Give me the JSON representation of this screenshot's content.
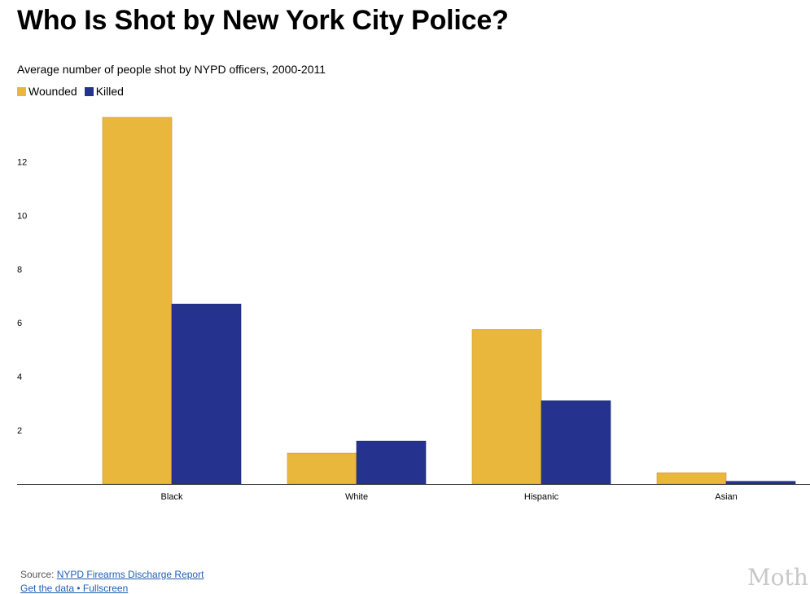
{
  "chart_data": {
    "type": "bar",
    "title": "Who Is Shot by New York City Police?",
    "subtitle": "Average number of people shot by NYPD officers, 2000-2011",
    "categories": [
      "Black",
      "White",
      "Hispanic",
      "Asian"
    ],
    "series": [
      {
        "name": "Wounded",
        "color": "#e8b73c",
        "values": [
          13.65,
          1.15,
          5.75,
          0.42
        ]
      },
      {
        "name": "Killed",
        "color": "#25338f",
        "values": [
          6.7,
          1.6,
          3.1,
          0.1
        ]
      }
    ],
    "yticks": [
      2,
      4,
      6,
      8,
      10,
      12
    ],
    "ylim": [
      0,
      13.65
    ],
    "xlabel": "",
    "ylabel": "",
    "grid": false,
    "legend_position": "top-left"
  },
  "footer": {
    "source_prefix": "Source:",
    "source_link": "NYPD Firearms Discharge Report",
    "data_link": "Get the data • Fullscreen"
  },
  "branding": {
    "logo_text": "Moth"
  }
}
